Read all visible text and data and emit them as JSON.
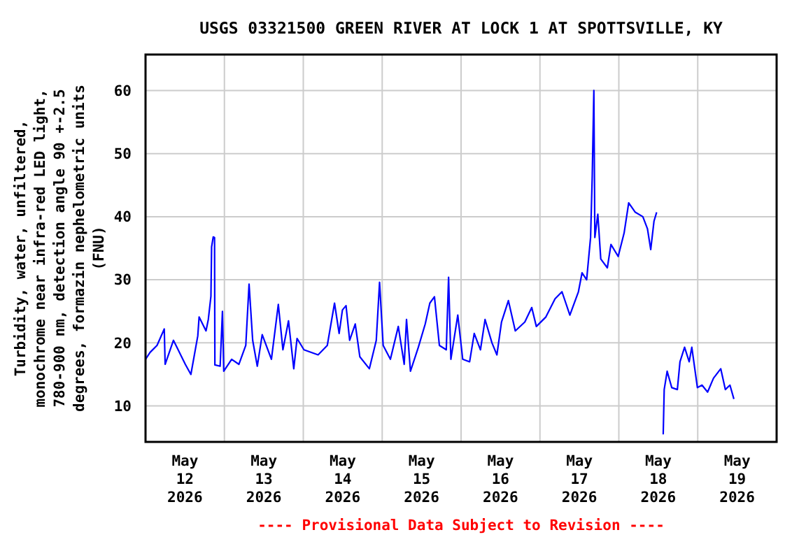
{
  "chart_data": {
    "type": "line",
    "title": "USGS 03321500 GREEN RIVER AT LOCK 1 AT SPOTTSVILLE, KY",
    "ylabel": "Turbidity, water, unfiltered,\nmonochrome near infra-red LED light,\n780-900 nm, detection angle 90 +-2.5\ndegrees, formazin nephelometric units\n(FNU)",
    "annotations": [
      "---- Provisional Data Subject to Revision ----"
    ],
    "x": [
      "2026-05-12T00:00",
      "2026-05-12T01:24",
      "2026-05-12T03:30",
      "2026-05-12T05:42",
      "2026-05-12T05:58",
      "2026-05-12T08:30",
      "2026-05-12T12:06",
      "2026-05-12T13:48",
      "2026-05-12T15:54",
      "2026-05-12T16:18",
      "2026-05-12T18:24",
      "2026-05-12T19:06",
      "2026-05-12T19:54",
      "2026-05-12T20:06",
      "2026-05-12T20:36",
      "2026-05-12T21:00",
      "2026-05-12T21:06",
      "2026-05-12T22:42",
      "2026-05-12T23:24",
      "2026-05-12T23:48",
      "2026-05-13T02:12",
      "2026-05-13T04:24",
      "2026-05-13T06:30",
      "2026-05-13T07:30",
      "2026-05-13T08:36",
      "2026-05-13T10:00",
      "2026-05-13T11:30",
      "2026-05-13T14:18",
      "2026-05-13T16:24",
      "2026-05-13T17:48",
      "2026-05-13T19:30",
      "2026-05-13T21:06",
      "2026-05-13T22:06",
      "2026-05-14T00:12",
      "2026-05-14T04:30",
      "2026-05-14T07:18",
      "2026-05-14T09:30",
      "2026-05-14T10:54",
      "2026-05-14T11:54",
      "2026-05-14T13:00",
      "2026-05-14T14:06",
      "2026-05-14T15:48",
      "2026-05-14T17:12",
      "2026-05-14T20:06",
      "2026-05-14T22:12",
      "2026-05-14T23:12",
      "2026-05-15T00:18",
      "2026-05-15T02:30",
      "2026-05-15T04:54",
      "2026-05-15T06:42",
      "2026-05-15T07:24",
      "2026-05-15T08:36",
      "2026-05-15T11:00",
      "2026-05-15T13:06",
      "2026-05-15T14:30",
      "2026-05-15T15:54",
      "2026-05-15T17:24",
      "2026-05-15T19:30",
      "2026-05-15T20:12",
      "2026-05-15T20:54",
      "2026-05-15T23:00",
      "2026-05-16T00:30",
      "2026-05-16T02:36",
      "2026-05-16T04:00",
      "2026-05-16T05:54",
      "2026-05-16T07:18",
      "2026-05-16T09:24",
      "2026-05-16T10:54",
      "2026-05-16T12:18",
      "2026-05-16T14:24",
      "2026-05-16T16:30",
      "2026-05-16T19:24",
      "2026-05-16T21:30",
      "2026-05-16T22:54",
      "2026-05-17T01:48",
      "2026-05-17T04:36",
      "2026-05-17T06:42",
      "2026-05-17T09:06",
      "2026-05-17T11:42",
      "2026-05-17T12:48",
      "2026-05-17T14:12",
      "2026-05-17T15:24",
      "2026-05-17T15:54",
      "2026-05-17T16:24",
      "2026-05-17T16:42",
      "2026-05-17T17:36",
      "2026-05-17T18:30",
      "2026-05-17T20:30",
      "2026-05-17T21:36",
      "2026-05-17T23:48",
      "2026-05-18T01:36",
      "2026-05-18T03:00",
      "2026-05-18T05:00",
      "2026-05-18T07:18",
      "2026-05-18T08:42",
      "2026-05-18T09:42",
      "2026-05-18T10:42",
      "2026-05-18T11:30",
      "2026-05-18T12:30",
      "2026-05-18T13:30",
      "2026-05-18T13:48",
      "2026-05-18T14:42",
      "2026-05-18T16:06",
      "2026-05-18T17:48",
      "2026-05-18T18:36",
      "2026-05-18T20:00",
      "2026-05-18T21:24",
      "2026-05-18T22:12",
      "2026-05-18T23:54",
      "2026-05-19T01:18",
      "2026-05-19T03:00",
      "2026-05-19T04:48",
      "2026-05-19T07:00",
      "2026-05-19T08:24",
      "2026-05-19T09:48",
      "2026-05-19T11:00"
    ],
    "series": [
      {
        "color": "#0000ff",
        "values": [
          17.4,
          18.5,
          19.6,
          22.2,
          16.6,
          20.4,
          16.6,
          15.0,
          21.1,
          24.1,
          21.9,
          23.7,
          27.4,
          35.2,
          36.8,
          36.7,
          16.5,
          16.3,
          25.0,
          15.5,
          17.4,
          16.6,
          19.6,
          29.3,
          20.4,
          16.3,
          21.3,
          17.4,
          26.1,
          18.9,
          23.5,
          15.9,
          20.7,
          18.9,
          18.1,
          19.6,
          26.3,
          21.5,
          25.2,
          25.9,
          20.4,
          23.0,
          17.8,
          15.9,
          20.4,
          29.6,
          19.6,
          17.4,
          22.6,
          16.6,
          23.7,
          15.5,
          19.3,
          23.0,
          26.3,
          27.3,
          19.6,
          18.9,
          30.4,
          17.4,
          24.4,
          17.4,
          17.0,
          21.5,
          18.9,
          23.7,
          20.0,
          18.1,
          23.3,
          26.7,
          21.9,
          23.3,
          25.6,
          22.6,
          24.1,
          27.0,
          28.1,
          24.4,
          28.1,
          31.1,
          30.0,
          36.7,
          46.3,
          60.0,
          36.7,
          40.4,
          33.3,
          31.9,
          35.6,
          33.7,
          37.4,
          42.2,
          40.7,
          40.0,
          38.1,
          34.8,
          39.3,
          40.7,
          null,
          5.5,
          12.6,
          15.5,
          12.9,
          12.6,
          17.0,
          19.3,
          17.0,
          19.3,
          12.9,
          13.3,
          12.2,
          14.4,
          15.9,
          12.6,
          13.3,
          11.1
        ]
      }
    ],
    "xlim": [
      "2026-05-12T00:00",
      "2026-05-20T00:00"
    ],
    "xticks": [
      {
        "value": "2026-05-12T00:00",
        "label": null
      },
      {
        "value": "2026-05-12T12:00",
        "label": "May\n12\n2026"
      },
      {
        "value": "2026-05-13T00:00",
        "label": null
      },
      {
        "value": "2026-05-13T12:00",
        "label": "May\n13\n2026"
      },
      {
        "value": "2026-05-14T00:00",
        "label": null
      },
      {
        "value": "2026-05-14T12:00",
        "label": "May\n14\n2026"
      },
      {
        "value": "2026-05-15T00:00",
        "label": null
      },
      {
        "value": "2026-05-15T12:00",
        "label": "May\n15\n2026"
      },
      {
        "value": "2026-05-16T00:00",
        "label": null
      },
      {
        "value": "2026-05-16T12:00",
        "label": "May\n16\n2026"
      },
      {
        "value": "2026-05-17T00:00",
        "label": null
      },
      {
        "value": "2026-05-17T12:00",
        "label": "May\n17\n2026"
      },
      {
        "value": "2026-05-18T00:00",
        "label": null
      },
      {
        "value": "2026-05-18T12:00",
        "label": "May\n18\n2026"
      },
      {
        "value": "2026-05-19T00:00",
        "label": null
      },
      {
        "value": "2026-05-19T12:00",
        "label": "May\n19\n2026"
      },
      {
        "value": "2026-05-20T00:00",
        "label": null
      }
    ],
    "ylim": [
      4.3,
      65.7
    ],
    "yticks": [
      10,
      20,
      30,
      40,
      50,
      60
    ],
    "grid": true,
    "line_style": "solid",
    "marker": "none"
  }
}
